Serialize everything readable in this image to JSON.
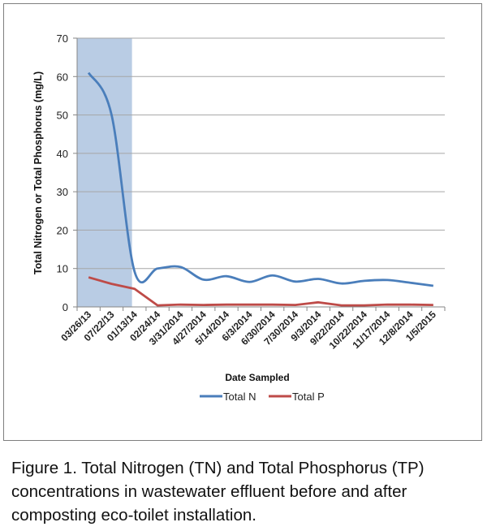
{
  "chart_data": {
    "type": "line",
    "xlabel": "Date Sampled",
    "ylabel": "Total Nitrogen or Total Phosphorus (mg/L)",
    "ylim": [
      0,
      70
    ],
    "yticks": [
      "0",
      "10",
      "20",
      "30",
      "40",
      "50",
      "60",
      "70"
    ],
    "grid": true,
    "legend": "bottom",
    "categories": [
      "03/26/13",
      "07/22/13",
      "01/13/14",
      "02/24/14",
      "3/31/2014",
      "4/27/2014",
      "5/14/2014",
      "6/3/2014",
      "6/30/2014",
      "7/30/2014",
      "9/3/2014",
      "9/22/2014",
      "10/22/2014",
      "11/17/2014",
      "12/8/2014",
      "1/5/2015"
    ],
    "shaded_categories": [
      "03/26/13",
      "07/22/13"
    ],
    "shade_color": "#b9cce4",
    "series": [
      {
        "name": "Total N",
        "color": "#4a7ebb",
        "values": [
          61,
          50,
          9.2,
          10,
          10.4,
          7.1,
          8.0,
          6.5,
          8.2,
          6.6,
          7.3,
          6.1,
          6.8,
          7.0,
          6.3,
          5.5
        ]
      },
      {
        "name": "Total P",
        "color": "#be4b48",
        "values": [
          7.7,
          6.0,
          4.7,
          0.4,
          0.6,
          0.5,
          0.6,
          0.6,
          0.6,
          0.5,
          1.2,
          0.4,
          0.4,
          0.6,
          0.6,
          0.5
        ]
      }
    ]
  },
  "caption": "Figure 1. Total Nitrogen (TN) and Total Phosphorus (TP) concentrations in wastewater effluent before and after composting eco-toilet installation."
}
